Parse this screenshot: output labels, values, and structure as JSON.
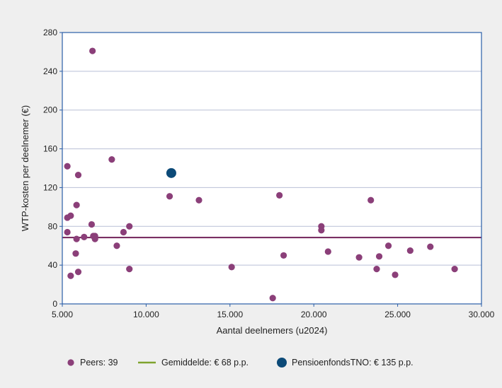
{
  "chart_data": {
    "type": "scatter",
    "title": "",
    "xlabel": "Aantal deelnemers (u2024)",
    "ylabel": "WTP-kosten per deelnemer (€)",
    "xlim": [
      5000,
      30000
    ],
    "ylim": [
      0,
      280
    ],
    "x_ticks": [
      5000,
      10000,
      15000,
      20000,
      25000,
      30000
    ],
    "x_tick_labels": [
      "5.000",
      "10.000",
      "15.000",
      "20.000",
      "25.000",
      "30.000"
    ],
    "y_ticks": [
      0,
      40,
      80,
      120,
      160,
      200,
      240,
      280
    ],
    "y_tick_labels": [
      "0",
      "40",
      "80",
      "120",
      "160",
      "200",
      "240",
      "280"
    ],
    "grid": "horizontal",
    "legend_position": "bottom",
    "colors": {
      "peers": "#8b3f79",
      "average_line": "#7a2f63",
      "average_legend": "#7fa32e",
      "highlight": "#0c4a78",
      "grid": "#b9bfd6",
      "axis": "#2a5ea8"
    },
    "series": [
      {
        "name": "Peers: 39",
        "points": [
          [
            5300,
            142
          ],
          [
            5300,
            89
          ],
          [
            5300,
            74
          ],
          [
            5500,
            91
          ],
          [
            5500,
            29
          ],
          [
            5850,
            102
          ],
          [
            5850,
            67
          ],
          [
            5800,
            52
          ],
          [
            5950,
            133
          ],
          [
            5950,
            33
          ],
          [
            6300,
            69
          ],
          [
            6750,
            82
          ],
          [
            6800,
            261
          ],
          [
            6850,
            70
          ],
          [
            6950,
            67
          ],
          [
            6950,
            70
          ],
          [
            7950,
            149
          ],
          [
            8250,
            60
          ],
          [
            8650,
            74
          ],
          [
            9000,
            80
          ],
          [
            9000,
            36
          ],
          [
            11400,
            111
          ],
          [
            13150,
            107
          ],
          [
            15100,
            38
          ],
          [
            17550,
            6
          ],
          [
            17950,
            112
          ],
          [
            18200,
            50
          ],
          [
            20450,
            80
          ],
          [
            20450,
            76
          ],
          [
            20850,
            54
          ],
          [
            22700,
            48
          ],
          [
            23400,
            107
          ],
          [
            23750,
            36
          ],
          [
            23900,
            49
          ],
          [
            24450,
            60
          ],
          [
            24850,
            30
          ],
          [
            25750,
            55
          ],
          [
            26950,
            59
          ],
          [
            28400,
            36
          ]
        ]
      },
      {
        "name": "PensioenfondsTNO: € 135 p.p.",
        "points": [
          [
            11500,
            135
          ]
        ]
      }
    ],
    "average": {
      "label": "Gemiddelde: € 68 p.p.",
      "value": 68.5
    }
  }
}
